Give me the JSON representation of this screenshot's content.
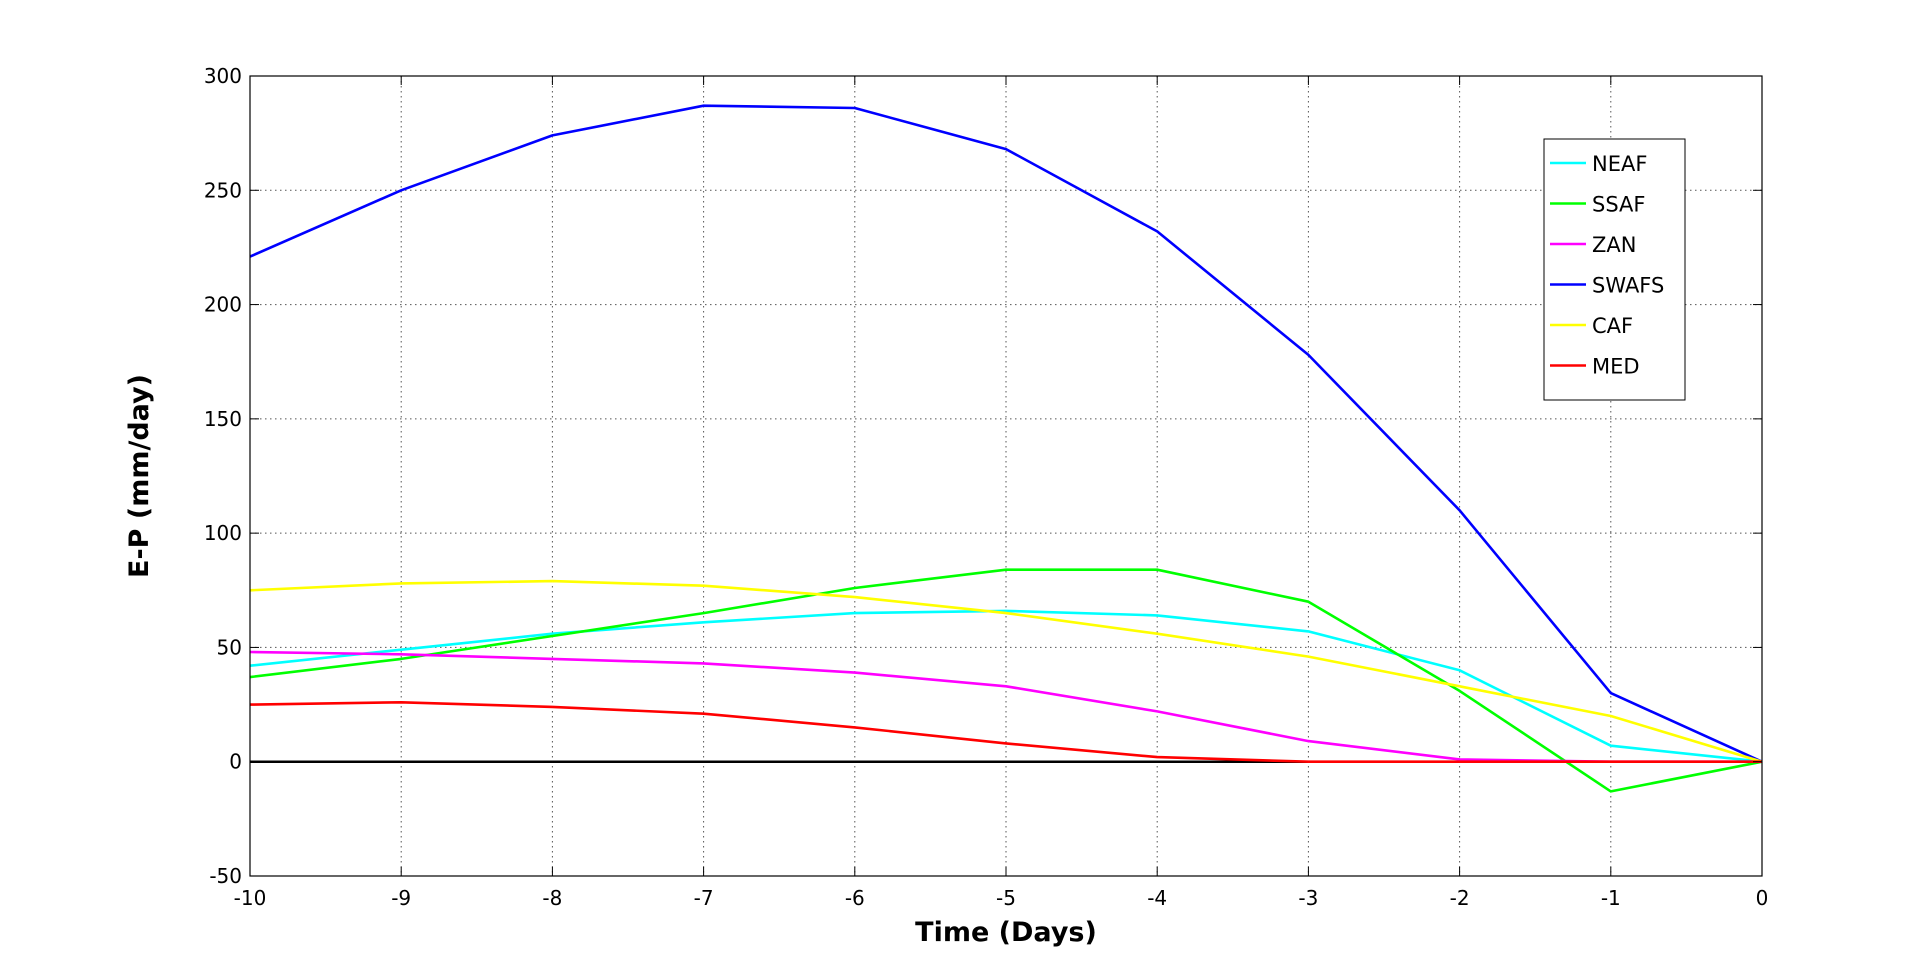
{
  "chart_data": {
    "type": "line",
    "title": "",
    "xlabel": "Time (Days)",
    "ylabel": "E-P (mm/day)",
    "xlim": [
      -10,
      0
    ],
    "ylim": [
      -50,
      300
    ],
    "x": [
      -10,
      -9,
      -8,
      -7,
      -6,
      -5,
      -4,
      -3,
      -2,
      -1,
      0
    ],
    "x_ticks": [
      -10,
      -9,
      -8,
      -7,
      -6,
      -5,
      -4,
      -3,
      -2,
      -1,
      0
    ],
    "y_ticks": [
      -50,
      0,
      50,
      100,
      150,
      200,
      250,
      300
    ],
    "grid": true,
    "grid_style": "dotted",
    "legend_position": "top-right",
    "reference_line": {
      "y": 0,
      "color": "#000000"
    },
    "series": [
      {
        "name": "NEAF",
        "color": "#00ffff",
        "values": [
          42,
          49,
          56,
          61,
          65,
          66,
          64,
          57,
          40,
          7,
          0
        ]
      },
      {
        "name": "SSAF",
        "color": "#00ff00",
        "values": [
          37,
          45,
          55,
          65,
          76,
          84,
          84,
          70,
          31,
          -13,
          0
        ]
      },
      {
        "name": "ZAN",
        "color": "#ff00ff",
        "values": [
          48,
          47,
          45,
          43,
          39,
          33,
          22,
          9,
          1,
          0,
          0
        ]
      },
      {
        "name": "SWAFS",
        "color": "#0000ff",
        "values": [
          221,
          250,
          274,
          287,
          286,
          268,
          232,
          178,
          110,
          30,
          0
        ]
      },
      {
        "name": "CAF",
        "color": "#ffff00",
        "values": [
          75,
          78,
          79,
          77,
          72,
          65,
          56,
          46,
          33,
          20,
          0
        ]
      },
      {
        "name": "MED",
        "color": "#ff0000",
        "values": [
          25,
          26,
          24,
          21,
          15,
          8,
          2,
          0,
          0,
          0,
          0
        ]
      }
    ]
  }
}
